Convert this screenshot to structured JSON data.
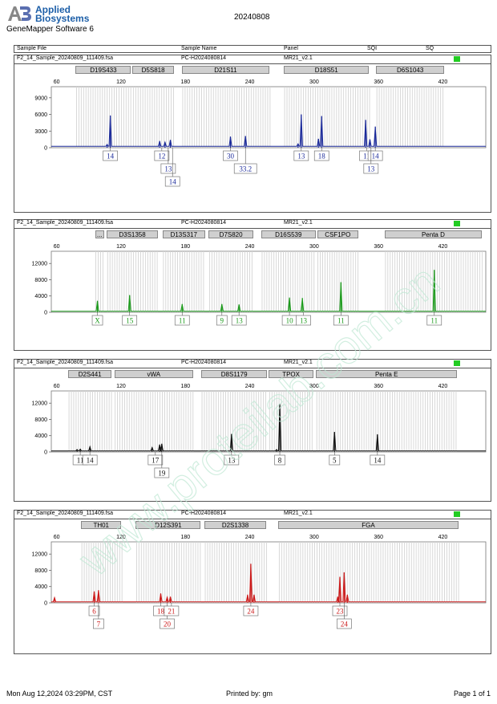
{
  "header": {
    "brand_line1": "Applied",
    "brand_line2": "Biosystems",
    "software": "GeneMapper Software 6",
    "report_date": "20240808"
  },
  "columns": {
    "sample_file": "Sample File",
    "sample_name": "Sample Name",
    "panel": "Panel",
    "sqi": "SQI",
    "sq": "SQ"
  },
  "footer": {
    "printed_on": "Mon Aug 12,2024 03:29PM, CST",
    "printed_by": "Printed by: gm",
    "page": "Page 1 of 1"
  },
  "chart_data": [
    {
      "type": "line",
      "file": "F2_14_Sample_20240809_111409.fsa",
      "sample": "PC-H2024080814",
      "panel": "MR21_v2.1",
      "color": "#1b2a9a",
      "xlim": [
        55,
        460
      ],
      "xticks": [
        60,
        120,
        180,
        240,
        300,
        360,
        420
      ],
      "ylim": [
        0,
        11000
      ],
      "yticks": [
        0,
        3000,
        6000,
        9000
      ],
      "markers": [
        {
          "name": "D19S433",
          "from": 77,
          "to": 130
        },
        {
          "name": "D5S818",
          "from": 130,
          "to": 170
        },
        {
          "name": "D21S11",
          "from": 176,
          "to": 259
        },
        {
          "name": "D18S51",
          "from": 271,
          "to": 352
        },
        {
          "name": "D6S1043",
          "from": 357,
          "to": 422
        }
      ],
      "peaks": [
        {
          "x": 110,
          "h": 5800
        },
        {
          "x": 107,
          "h": 600
        },
        {
          "x": 156,
          "h": 1200
        },
        {
          "x": 161,
          "h": 1000
        },
        {
          "x": 166,
          "h": 1400
        },
        {
          "x": 222,
          "h": 2000
        },
        {
          "x": 236,
          "h": 2100
        },
        {
          "x": 288,
          "h": 6000
        },
        {
          "x": 285,
          "h": 700
        },
        {
          "x": 307,
          "h": 5700
        },
        {
          "x": 304,
          "h": 1600
        },
        {
          "x": 348,
          "h": 5000
        },
        {
          "x": 352,
          "h": 1500
        },
        {
          "x": 357,
          "h": 3800
        }
      ],
      "alleles": [
        {
          "label": "14",
          "x": 110,
          "row": 0
        },
        {
          "label": "12",
          "x": 158,
          "row": 0
        },
        {
          "label": "13",
          "x": 164,
          "row": 1
        },
        {
          "label": "14",
          "x": 168,
          "row": 2
        },
        {
          "label": "30",
          "x": 222,
          "row": 0
        },
        {
          "label": "33.2",
          "x": 236,
          "row": 1
        },
        {
          "label": "13",
          "x": 288,
          "row": 0
        },
        {
          "label": "18",
          "x": 307,
          "row": 0
        },
        {
          "label": "11",
          "x": 349,
          "row": 0
        },
        {
          "label": "14",
          "x": 357,
          "row": 0
        },
        {
          "label": "13",
          "x": 353,
          "row": 1
        }
      ]
    },
    {
      "type": "line",
      "file": "F2_14_Sample_20240809_111409.fsa",
      "sample": "PC-H2024080814",
      "panel": "MR21_v2.1",
      "color": "#1c9a1c",
      "xlim": [
        55,
        460
      ],
      "xticks": [
        60,
        120,
        180,
        240,
        300,
        360,
        420
      ],
      "ylim": [
        0,
        15000
      ],
      "yticks": [
        0,
        4000,
        8000,
        12000
      ],
      "markers": [
        {
          "name": "...",
          "from": 95,
          "to": 105
        },
        {
          "name": "D3S1358",
          "from": 106,
          "to": 155
        },
        {
          "name": "D13S317",
          "from": 158,
          "to": 199
        },
        {
          "name": "D7S820",
          "from": 201,
          "to": 244
        },
        {
          "name": "D16S539",
          "from": 250,
          "to": 302
        },
        {
          "name": "CSF1PO",
          "from": 302,
          "to": 342
        },
        {
          "name": "Penta D",
          "from": 365,
          "to": 457
        }
      ],
      "peaks": [
        {
          "x": 98,
          "h": 2800
        },
        {
          "x": 128,
          "h": 4200
        },
        {
          "x": 177,
          "h": 2000
        },
        {
          "x": 214,
          "h": 2000
        },
        {
          "x": 230,
          "h": 1900
        },
        {
          "x": 277,
          "h": 3600
        },
        {
          "x": 289,
          "h": 3500
        },
        {
          "x": 325,
          "h": 7400
        },
        {
          "x": 412,
          "h": 10400
        }
      ],
      "alleles": [
        {
          "label": "X",
          "x": 98,
          "row": 0
        },
        {
          "label": "15",
          "x": 128,
          "row": 0
        },
        {
          "label": "11",
          "x": 177,
          "row": 0
        },
        {
          "label": "9",
          "x": 214,
          "row": 0
        },
        {
          "label": "13",
          "x": 230,
          "row": 0
        },
        {
          "label": "10",
          "x": 277,
          "row": 0
        },
        {
          "label": "13",
          "x": 290,
          "row": 0
        },
        {
          "label": "11",
          "x": 325,
          "row": 0
        },
        {
          "label": "11",
          "x": 412,
          "row": 0
        }
      ]
    },
    {
      "type": "line",
      "file": "F2_14_Sample_20240809_111409.fsa",
      "sample": "PC-H2024080814",
      "panel": "MR21_v2.1",
      "color": "#111111",
      "xlim": [
        55,
        460
      ],
      "xticks": [
        60,
        120,
        180,
        240,
        300,
        360,
        420
      ],
      "ylim": [
        0,
        15000
      ],
      "yticks": [
        0,
        4000,
        8000,
        12000
      ],
      "markers": [
        {
          "name": "D2S441",
          "from": 70,
          "to": 112
        },
        {
          "name": "vWA",
          "from": 113,
          "to": 188
        },
        {
          "name": "D8S1179",
          "from": 194,
          "to": 257
        },
        {
          "name": "TPOX",
          "from": 257,
          "to": 300
        },
        {
          "name": "Penta E",
          "from": 301,
          "to": 434
        }
      ],
      "peaks": [
        {
          "x": 79,
          "h": 600
        },
        {
          "x": 82,
          "h": 700
        },
        {
          "x": 91,
          "h": 1300
        },
        {
          "x": 149,
          "h": 1100
        },
        {
          "x": 156,
          "h": 1800
        },
        {
          "x": 158,
          "h": 2000
        },
        {
          "x": 223,
          "h": 4400
        },
        {
          "x": 268,
          "h": 11800
        },
        {
          "x": 265,
          "h": 600
        },
        {
          "x": 319,
          "h": 4900
        },
        {
          "x": 359,
          "h": 4300
        }
      ],
      "alleles": [
        {
          "label": "11",
          "x": 82,
          "row": 0
        },
        {
          "label": "14",
          "x": 91,
          "row": 0
        },
        {
          "label": "17",
          "x": 152,
          "row": 0
        },
        {
          "label": "19",
          "x": 158,
          "row": 1
        },
        {
          "label": "13",
          "x": 223,
          "row": 0
        },
        {
          "label": "8",
          "x": 268,
          "row": 0
        },
        {
          "label": "5",
          "x": 319,
          "row": 0
        },
        {
          "label": "14",
          "x": 359,
          "row": 0
        }
      ]
    },
    {
      "type": "line",
      "file": "F2_14_Sample_20240809_111409.fsa",
      "sample": "PC-H2024080814",
      "panel": "MR21_v2.1",
      "color": "#cc1a1a",
      "xlim": [
        55,
        460
      ],
      "xticks": [
        60,
        120,
        180,
        240,
        300,
        360,
        420
      ],
      "ylim": [
        0,
        15000
      ],
      "yticks": [
        0,
        4000,
        8000,
        12000
      ],
      "markers": [
        {
          "name": "TH01",
          "from": 82,
          "to": 121
        },
        {
          "name": "D12S391",
          "from": 133,
          "to": 195
        },
        {
          "name": "D2S1338",
          "from": 197,
          "to": 256
        },
        {
          "name": "FGA",
          "from": 266,
          "to": 435
        }
      ],
      "peaks": [
        {
          "x": 58,
          "h": 1300
        },
        {
          "x": 95,
          "h": 2800
        },
        {
          "x": 99,
          "h": 3100
        },
        {
          "x": 157,
          "h": 2300
        },
        {
          "x": 163,
          "h": 1400
        },
        {
          "x": 166,
          "h": 1500
        },
        {
          "x": 238,
          "h": 2000
        },
        {
          "x": 241,
          "h": 9600
        },
        {
          "x": 244,
          "h": 2000
        },
        {
          "x": 322,
          "h": 1500
        },
        {
          "x": 324,
          "h": 6400
        },
        {
          "x": 328,
          "h": 7500
        },
        {
          "x": 331,
          "h": 2000
        }
      ],
      "alleles": [
        {
          "label": "6",
          "x": 95,
          "row": 0
        },
        {
          "label": "7",
          "x": 99,
          "row": 1
        },
        {
          "label": "18",
          "x": 157,
          "row": 0
        },
        {
          "label": "20",
          "x": 163,
          "row": 1
        },
        {
          "label": "21",
          "x": 167,
          "row": 0
        },
        {
          "label": "24",
          "x": 241,
          "row": 0
        },
        {
          "label": "23",
          "x": 324,
          "row": 0
        },
        {
          "label": "24",
          "x": 328,
          "row": 1
        }
      ]
    }
  ]
}
